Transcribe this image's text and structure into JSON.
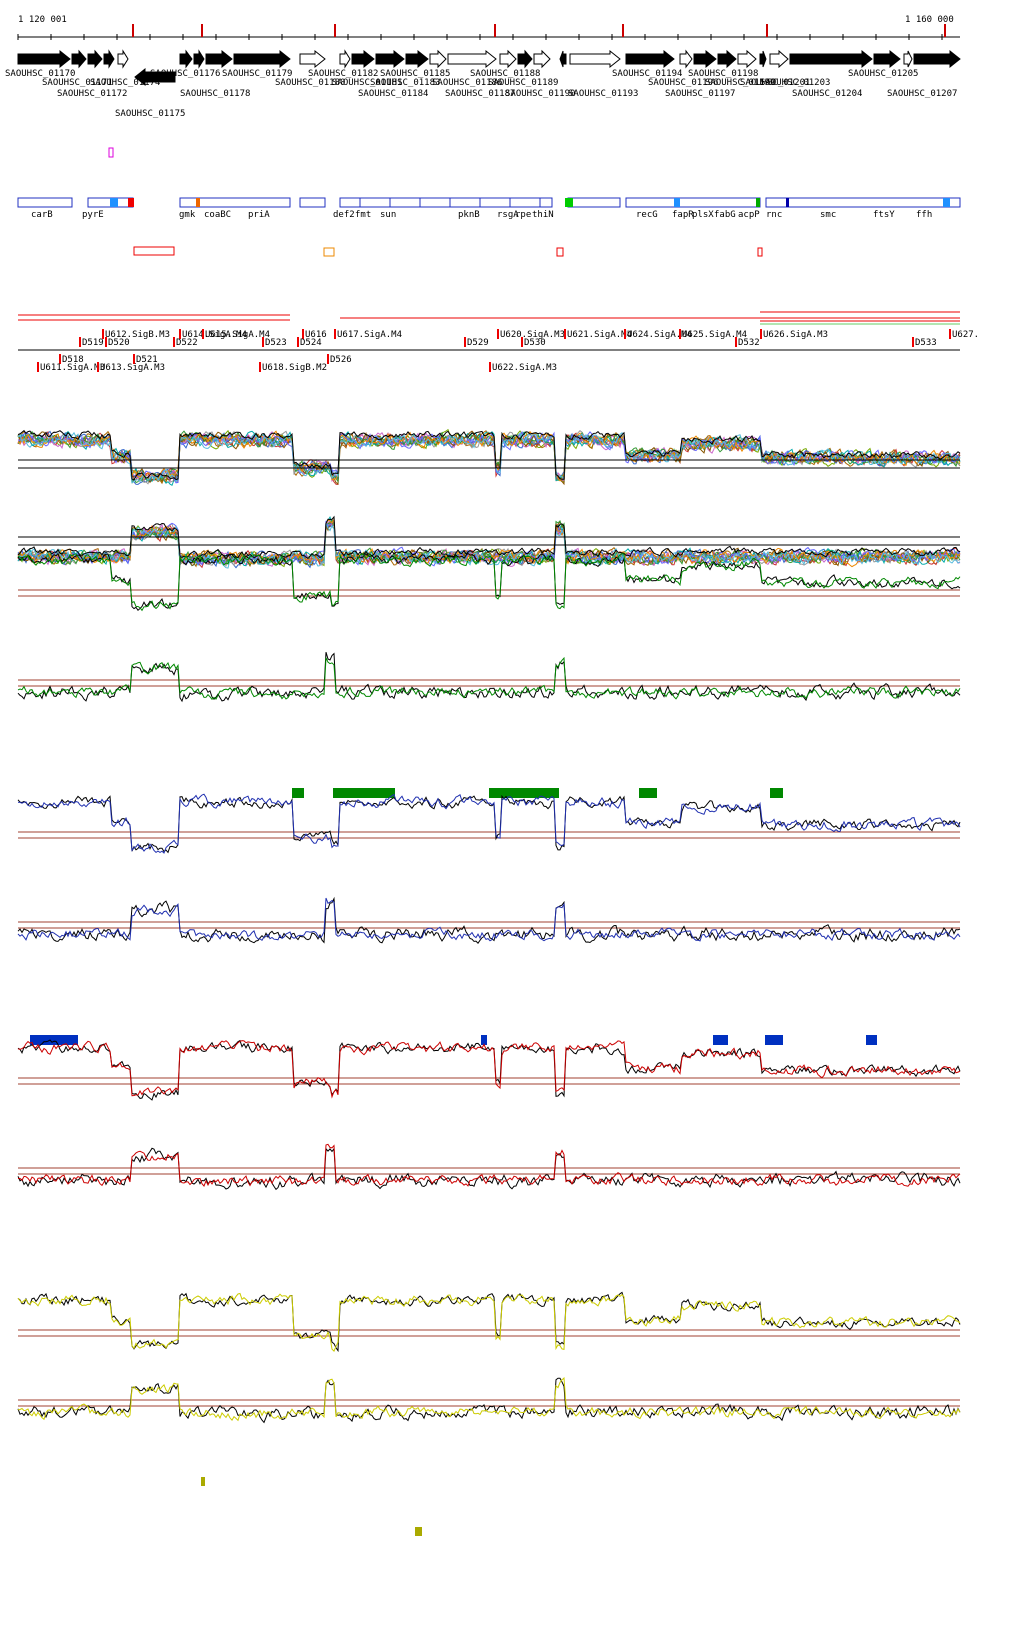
{
  "ruler": {
    "start": "1 120 001",
    "end": "1 160 000"
  },
  "loci": [
    "SAOUHSC_01170",
    "SAOUHSC_01176",
    "SAOUHSC_01179",
    "SAOUHSC_01182",
    "SAOUHSC_01185",
    "SAOUHSC_01188",
    "SAOUHSC_01194",
    "SAOUHSC_01198",
    "SAOUHSC_01205",
    "SAOUHSC_01171",
    "SAOUHSC_01174",
    "SAOUHSC_01180",
    "SAOUHSC_01181",
    "SAOUHSC_01183",
    "SAOUHSC_01186",
    "SAOUHSC_01189",
    "SAOUHSC_01196",
    "SAOUHSC_01199",
    "SAOUHSC_01201",
    "SAOUHSC_01203",
    "SAOUHSC_01172",
    "SAOUHSC_01178",
    "SAOUHSC_01184",
    "SAOUHSC_01187",
    "SAOUHSC_01190",
    "SAOUHSC_01193",
    "SAOUHSC_01197",
    "SAOUHSC_01204",
    "SAOUHSC_01207",
    "SAOUHSC_01175"
  ],
  "genes": [
    "carB",
    "pyrE",
    "gmk",
    "coaBC",
    "priA",
    "def2",
    "fmt",
    "sun",
    "pknB",
    "rsgA",
    "rpe",
    "thiN",
    "recG",
    "fapR",
    "plsX",
    "fabG",
    "acpP",
    "rnc",
    "smc",
    "ftsY",
    "ffh"
  ],
  "features": [
    "U612.SigB.M3",
    "U614.SigA.M4",
    "U615.SigA.M4",
    "U616",
    "U617.SigA.M4",
    "U620.SigA.M3",
    "U621.SigA.M4",
    "U624.SigA.M4",
    "U625.SigA.M4",
    "U626.SigA.M3",
    "U627.",
    "D519",
    "D520",
    "D522",
    "D523",
    "D524",
    "D529",
    "D530",
    "D532",
    "D533",
    "D518",
    "D521",
    "D526",
    "U611.SigA.M3",
    "U613.SigA.M3",
    "U618.SigB.M2",
    "U622.SigA.M3"
  ]
}
